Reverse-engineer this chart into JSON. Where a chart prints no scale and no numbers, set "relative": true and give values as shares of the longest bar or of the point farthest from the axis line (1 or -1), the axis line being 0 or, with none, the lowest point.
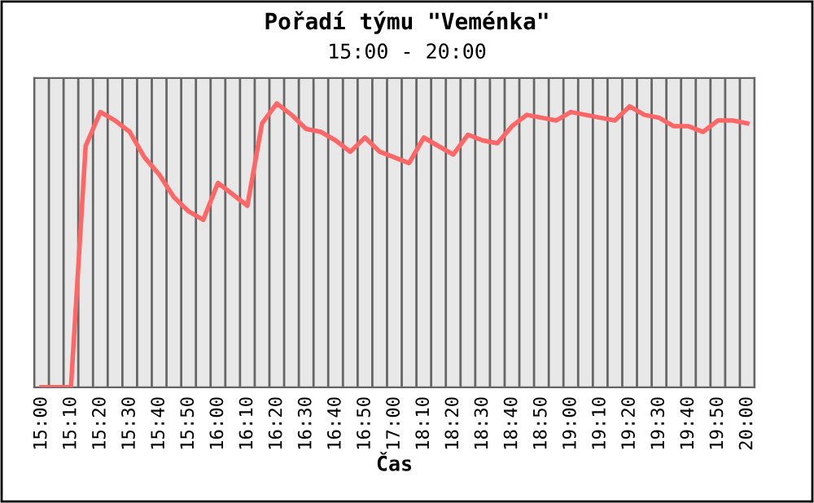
{
  "chart_data": {
    "type": "line",
    "title": "Pořadí týmu \"Veménka\"",
    "subtitle": "15:00 - 20:00",
    "xlabel": "Čas",
    "relative": true,
    "grid": "x",
    "legend": false,
    "marker": "none",
    "line_style": "solid",
    "categories": [
      "15:00",
      null,
      "15:10",
      null,
      "15:20",
      null,
      "15:30",
      null,
      "15:40",
      null,
      "15:50",
      null,
      "16:00",
      null,
      "16:10",
      null,
      "16:20",
      null,
      "16:30",
      null,
      "16:40",
      null,
      "16:50",
      null,
      "17:00",
      null,
      "18:10",
      null,
      "18:20",
      null,
      "18:30",
      null,
      "18:40",
      null,
      "18:50",
      null,
      "19:00",
      null,
      "19:10",
      null,
      "19:20",
      null,
      "19:30",
      null,
      "19:40",
      null,
      "19:50",
      null,
      "20:00"
    ],
    "series": [
      {
        "color": "#ff6666",
        "values": [
          0,
          0,
          0,
          0.85,
          0.97,
          0.94,
          0.9,
          0.81,
          0.75,
          0.67,
          0.62,
          0.59,
          0.72,
          0.68,
          0.64,
          0.93,
          1,
          0.96,
          0.91,
          0.9,
          0.87,
          0.83,
          0.88,
          0.83,
          0.81,
          0.79,
          0.88,
          0.85,
          0.82,
          0.89,
          0.87,
          0.86,
          0.92,
          0.96,
          0.95,
          0.94,
          0.97,
          0.96,
          0.95,
          0.94,
          0.99,
          0.96,
          0.95,
          0.92,
          0.92,
          0.9,
          0.94,
          0.94,
          0.93
        ]
      }
    ]
  }
}
